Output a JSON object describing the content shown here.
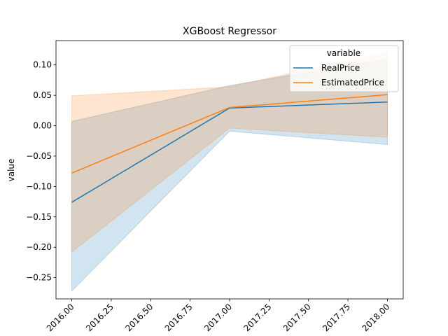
{
  "chart_data": {
    "type": "line",
    "title": "XGBoost Regressor",
    "xlabel": "",
    "ylabel": "value",
    "xlim": [
      1999.9,
      2018.1
    ],
    "ylim": [
      -0.285,
      0.14
    ],
    "x_ticks": [
      2016.0,
      2016.25,
      2016.5,
      2016.75,
      2017.0,
      2017.25,
      2017.5,
      2017.75,
      2018.0
    ],
    "x_tick_labels": [
      "2016.00",
      "2016.25",
      "2016.50",
      "2016.75",
      "2017.00",
      "2017.25",
      "2017.50",
      "2017.75",
      "2018.00"
    ],
    "y_ticks": [
      -0.25,
      -0.2,
      -0.15,
      -0.1,
      -0.05,
      0.0,
      0.05,
      0.1
    ],
    "y_tick_labels": [
      "−0.25",
      "−0.20",
      "−0.15",
      "−0.10",
      "−0.05",
      "0.00",
      "0.05",
      "0.10"
    ],
    "grid": false,
    "legend": {
      "title": "variable",
      "placement": "top-right"
    },
    "x": [
      2016.0,
      2017.0,
      2018.0
    ],
    "series": [
      {
        "name": "RealPrice",
        "color": "#1f77b4",
        "values": [
          -0.126,
          0.029,
          0.039
        ],
        "ci_low": [
          -0.272,
          -0.009,
          -0.031
        ],
        "ci_high": [
          0.007,
          0.066,
          0.11
        ]
      },
      {
        "name": "EstimatedPrice",
        "color": "#ff7f0e",
        "values": [
          -0.078,
          0.03,
          0.051
        ],
        "ci_low": [
          -0.208,
          -0.004,
          -0.019
        ],
        "ci_high": [
          0.049,
          0.064,
          0.121
        ]
      }
    ]
  }
}
